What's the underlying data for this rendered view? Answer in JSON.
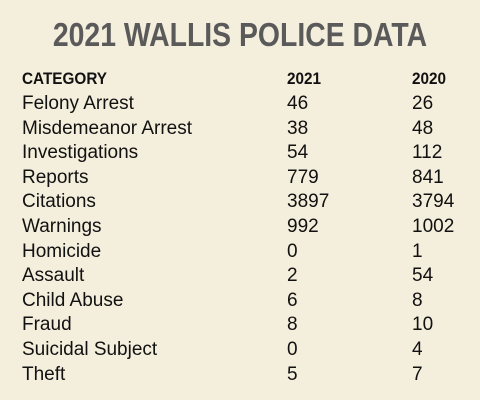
{
  "title": "2021 WALLIS POLICE DATA",
  "table": {
    "columns": [
      "CATEGORY",
      "2021",
      "2020"
    ],
    "rows": [
      [
        "Felony Arrest",
        46,
        26
      ],
      [
        "Misdemeanor Arrest",
        38,
        48
      ],
      [
        "Investigations",
        54,
        112
      ],
      [
        "Reports",
        779,
        841
      ],
      [
        "Citations",
        3897,
        3794
      ],
      [
        "Warnings",
        992,
        1002
      ],
      [
        "Homicide",
        0,
        1
      ],
      [
        "Assault",
        2,
        54
      ],
      [
        "Child Abuse",
        6,
        8
      ],
      [
        "Fraud",
        8,
        10
      ],
      [
        "Suicidal Subject",
        0,
        4
      ],
      [
        "Theft",
        5,
        7
      ]
    ]
  }
}
